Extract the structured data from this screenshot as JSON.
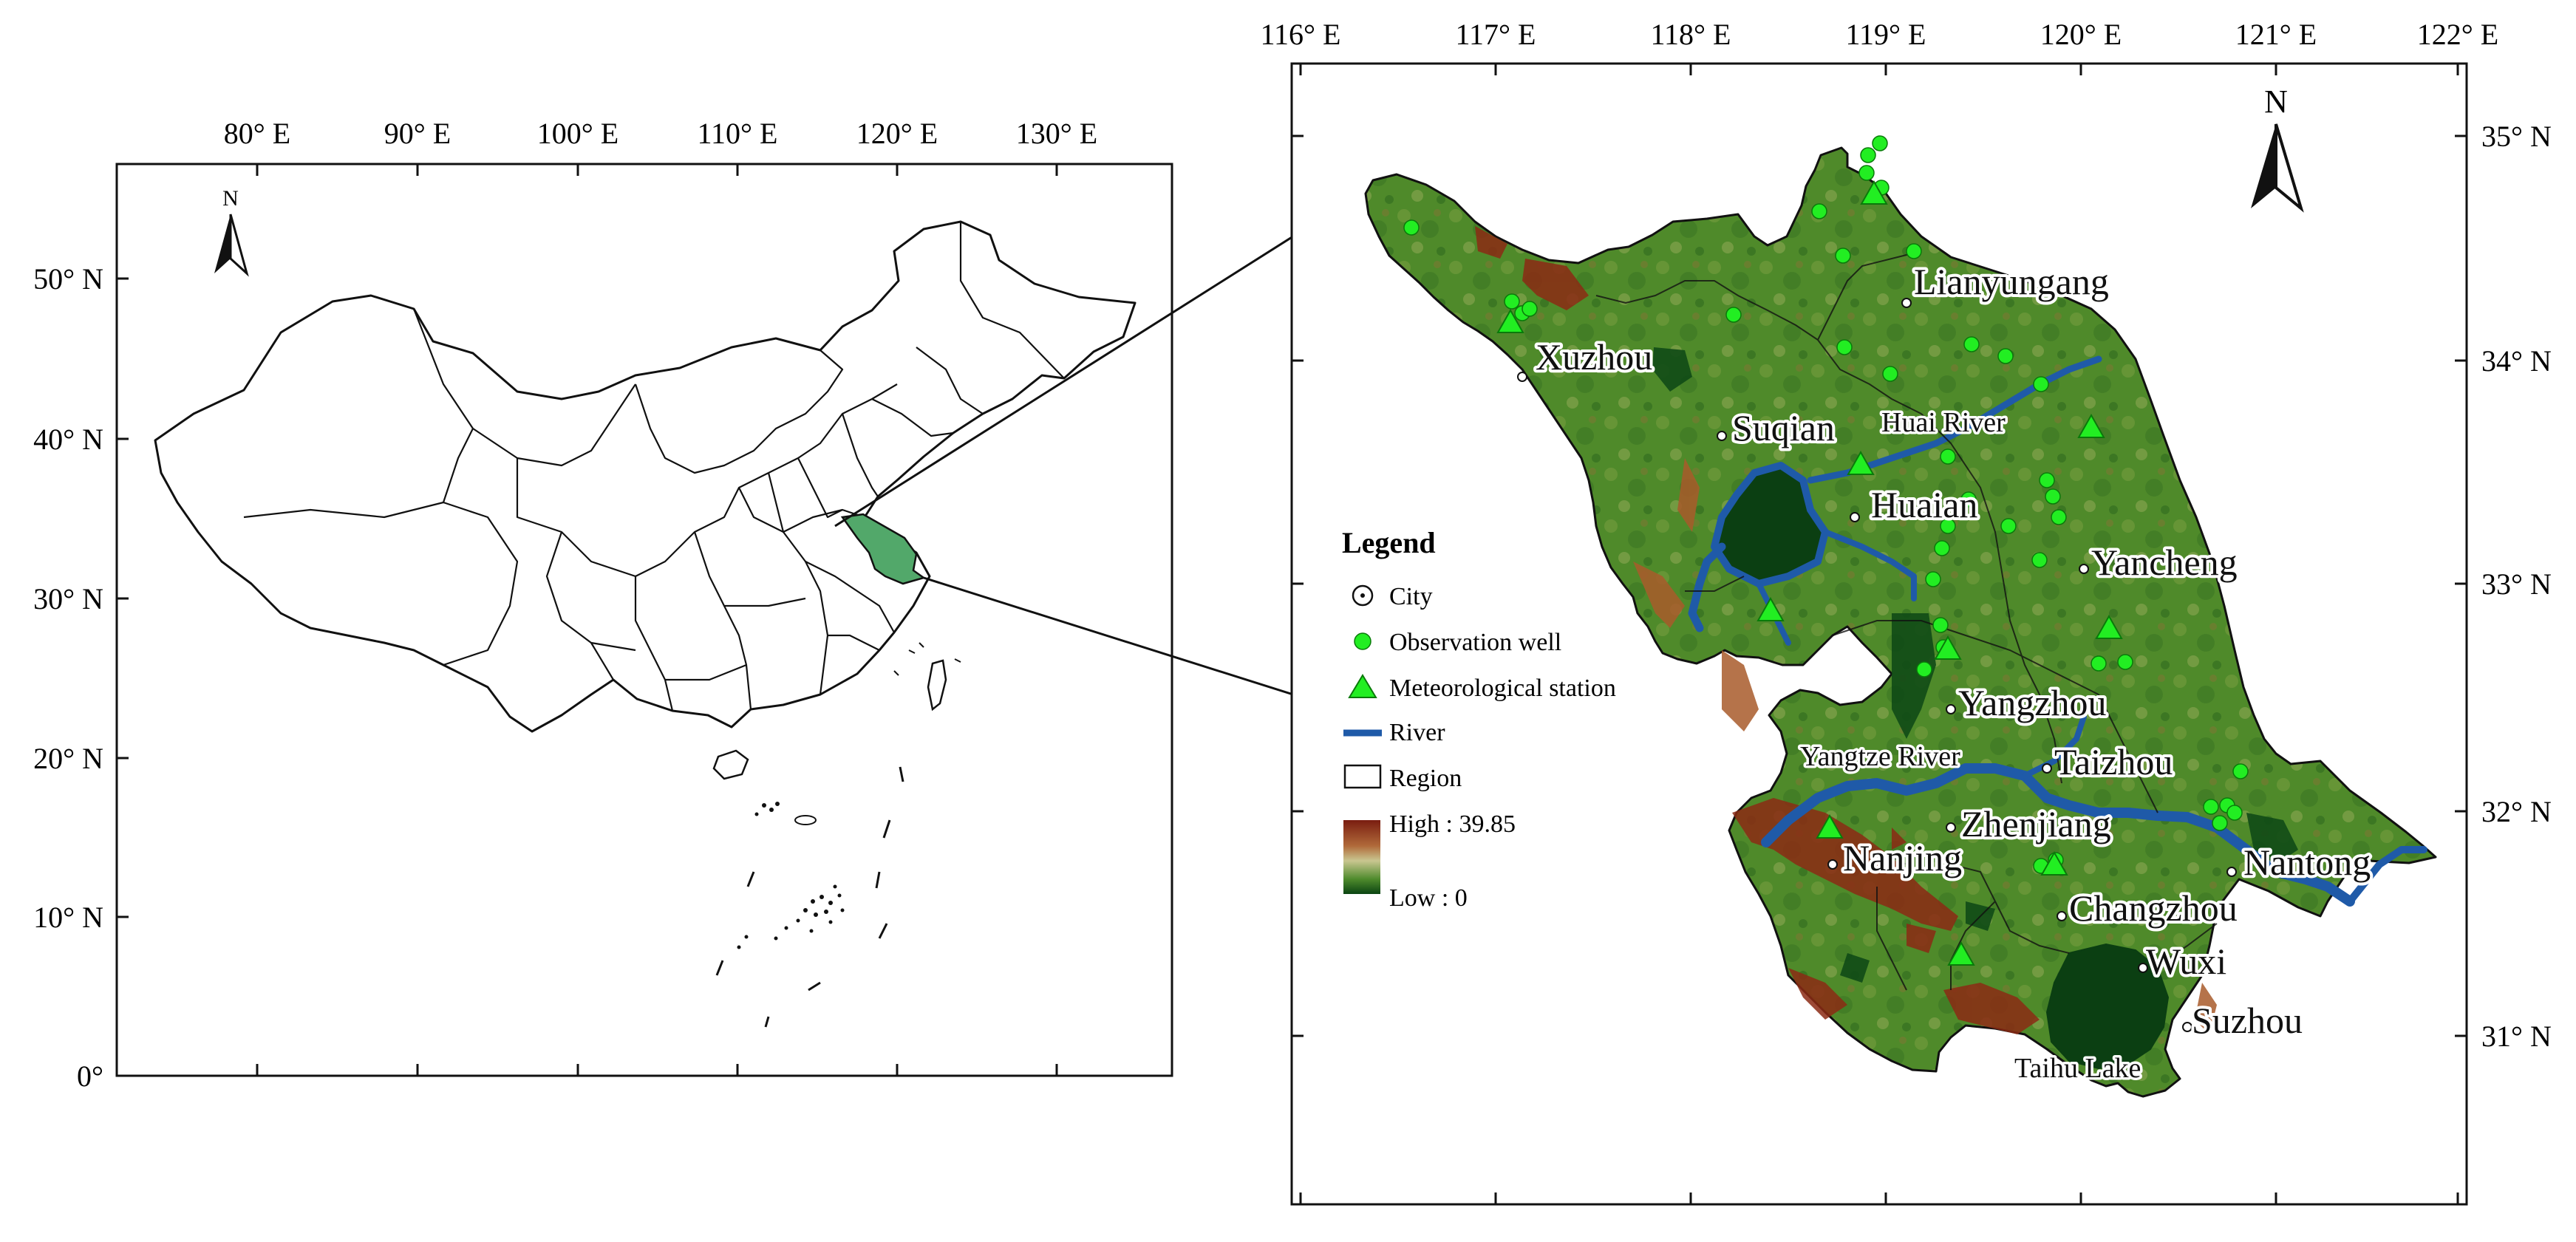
{
  "left_map": {
    "north_label": "N",
    "lon_ticks": [
      "80° E",
      "90° E",
      "100° E",
      "110° E",
      "120° E",
      "130° E"
    ],
    "lat_ticks": [
      "50° N",
      "40° N",
      "30° N",
      "20° N",
      "10° N",
      "0°"
    ]
  },
  "right_map": {
    "north_label": "N",
    "lon_ticks": [
      "116° E",
      "117° E",
      "118° E",
      "119° E",
      "120° E",
      "121° E",
      "122° E"
    ],
    "lat_ticks": [
      "35° N",
      "34° N",
      "33° N",
      "32° N",
      "31° N"
    ],
    "cities": [
      "Xuzhou",
      "Lianyungang",
      "Suqian",
      "Huaian",
      "Yancheng",
      "Yangzhou",
      "Taizhou",
      "Zhenjiang",
      "Nanjing",
      "Nantong",
      "Changzhou",
      "Wuxi",
      "Suzhou"
    ],
    "water_labels": [
      "Huai River",
      "Yangtze River",
      "Taihu Lake"
    ]
  },
  "legend": {
    "title": "Legend",
    "items": [
      {
        "label": "City",
        "symbol": "city-dot"
      },
      {
        "label": "Observation well",
        "symbol": "green-circle"
      },
      {
        "label": "Meteorological station",
        "symbol": "green-triangle"
      },
      {
        "label": "River",
        "symbol": "blue-line"
      },
      {
        "label": "Region",
        "symbol": "white-box"
      }
    ],
    "ramp_high": "High : 39.85",
    "ramp_low": "Low : 0"
  },
  "colors": {
    "land_green": "#4f8a2a",
    "dark_green": "#0f4a16",
    "high_red": "#8b2a14",
    "river_blue": "#1f5aa8",
    "symbol_green": "#22ee22",
    "jiangsu_fill": "#52a86a"
  }
}
